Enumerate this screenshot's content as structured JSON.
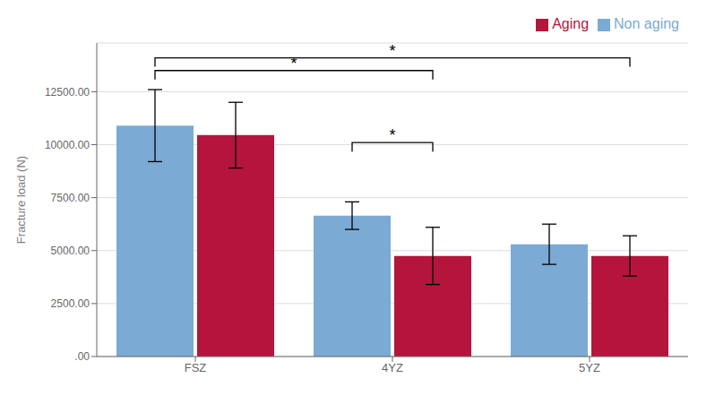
{
  "chart_data": {
    "type": "bar",
    "categories": [
      "FSZ",
      "4YZ",
      "5YZ"
    ],
    "series": [
      {
        "name": "Non aging",
        "color": "#7baad4",
        "values": [
          10900,
          6650,
          5300
        ],
        "errors": [
          1700,
          650,
          950
        ]
      },
      {
        "name": "Aging",
        "color": "#b5153c",
        "values": [
          10450,
          4750,
          4750
        ],
        "errors": [
          1550,
          1350,
          950
        ]
      }
    ],
    "ylabel": "Fracture load (N)",
    "ylim": [
      0,
      14800
    ],
    "yticks": [
      {
        "value": 0,
        "label": ".00"
      },
      {
        "value": 2500,
        "label": "2500.00"
      },
      {
        "value": 5000,
        "label": "5000.00"
      },
      {
        "value": 7500,
        "label": "7500.00"
      },
      {
        "value": 10000,
        "label": "10000.00"
      },
      {
        "value": 12500,
        "label": "12500.00"
      }
    ],
    "grid": true,
    "legend": "upper right",
    "annotations": [
      {
        "text": "*",
        "from": {
          "series": "Non aging",
          "category": "FSZ"
        },
        "to": {
          "series": "Aging",
          "category": "4YZ"
        },
        "y": 13500
      },
      {
        "text": "*",
        "from": {
          "series": "Non aging",
          "category": "FSZ"
        },
        "to": {
          "series": "Aging",
          "category": "5YZ"
        },
        "y": 14100
      },
      {
        "text": "*",
        "from": {
          "series": "Non aging",
          "category": "4YZ"
        },
        "to": {
          "series": "Aging",
          "category": "4YZ"
        },
        "y": 10100
      }
    ]
  }
}
